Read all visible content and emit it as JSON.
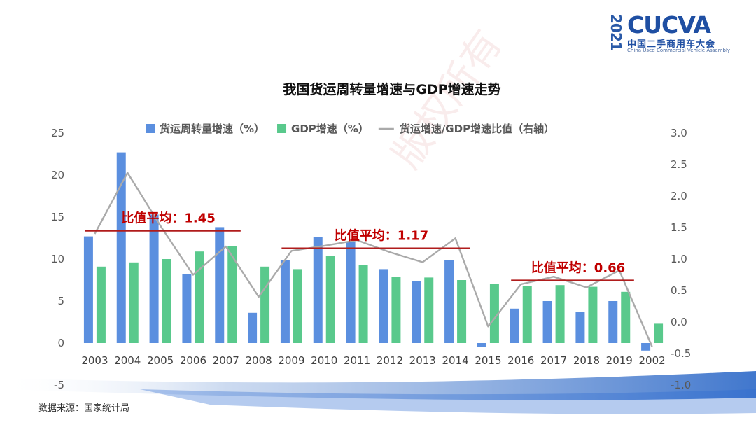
{
  "logo": {
    "year": "2021",
    "brand": "CUCVA",
    "cn_name": "中国二手商用车大会",
    "en_name": "China Used Commercial Vehicle Assembly"
  },
  "watermark": "版权所有",
  "footer": {
    "source": "数据来源：国家统计局"
  },
  "colors": {
    "freight": "#5b8fdf",
    "gdp": "#59c98c",
    "ratio": "#aaaaaa",
    "avg_line": "#b01c1c",
    "avg_text": "#c00000"
  },
  "chart_data": {
    "type": "bar",
    "title": "我国货运周转量增速与GDP增速走势",
    "categories": [
      "2003",
      "2004",
      "2005",
      "2006",
      "2007",
      "2008",
      "2009",
      "2010",
      "2011",
      "2012",
      "2013",
      "2014",
      "2015",
      "2016",
      "2017",
      "2018",
      "2019",
      "2002"
    ],
    "y_left": {
      "range": [
        -5,
        25
      ],
      "ticks": [
        "-5",
        "0",
        "5",
        "10",
        "15",
        "20",
        "25"
      ]
    },
    "y_right": {
      "range": [
        -1.0,
        3.0
      ],
      "ticks": [
        "-1.0",
        "-0.5",
        "0.0",
        "0.5",
        "1.0",
        "1.5",
        "2.0",
        "2.5",
        "3.0"
      ]
    },
    "legend_position": "top",
    "series": [
      {
        "name": "货运周转量增速（%）",
        "type": "bar",
        "axis": "left",
        "color": "#5b8fdf",
        "values": [
          12.7,
          22.7,
          15.3,
          8.2,
          13.8,
          3.6,
          9.9,
          12.6,
          12.1,
          8.8,
          7.4,
          9.9,
          -0.5,
          4.1,
          5.0,
          3.7,
          5.0,
          -0.9
        ]
      },
      {
        "name": "GDP增速（%）",
        "type": "bar",
        "axis": "left",
        "color": "#59c98c",
        "values": [
          9.1,
          9.6,
          10.0,
          10.9,
          11.5,
          9.1,
          8.8,
          10.4,
          9.3,
          7.9,
          7.8,
          7.5,
          7.0,
          6.8,
          6.9,
          6.7,
          6.1,
          2.3
        ]
      },
      {
        "name": "货运增速/GDP增速比值（右轴）",
        "type": "line",
        "axis": "right",
        "color": "#aaaaaa",
        "values": [
          1.4,
          2.37,
          1.53,
          0.75,
          1.2,
          0.4,
          1.13,
          1.21,
          1.3,
          1.11,
          0.95,
          1.33,
          -0.07,
          0.6,
          0.72,
          0.55,
          0.82,
          -0.39
        ]
      }
    ],
    "annotations": [
      {
        "text": "比值平均：1.45",
        "value": 1.45,
        "from": "2003",
        "to": "2007"
      },
      {
        "text": "比值平均：1.17",
        "value": 1.17,
        "from": "2009",
        "to": "2014"
      },
      {
        "text": "比值平均：0.66",
        "value": 0.66,
        "from": "2016",
        "to": "2019"
      }
    ]
  }
}
